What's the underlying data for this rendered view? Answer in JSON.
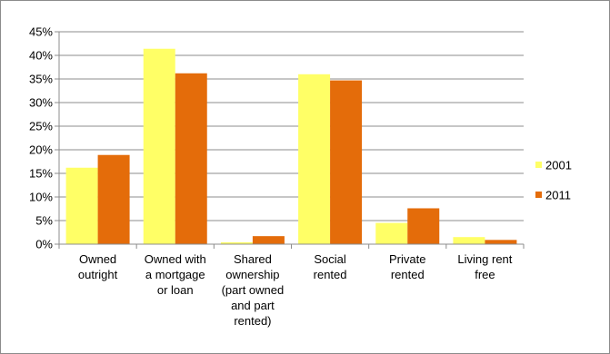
{
  "chart_data": {
    "type": "bar",
    "title": "",
    "xlabel": "",
    "ylabel": "",
    "ylim": [
      0,
      45
    ],
    "y_ticks": [
      "0%",
      "5%",
      "10%",
      "15%",
      "20%",
      "25%",
      "30%",
      "35%",
      "40%",
      "45%"
    ],
    "grid": true,
    "legend_position": "right",
    "categories": [
      [
        "Owned",
        "outright"
      ],
      [
        "Owned with",
        "a mortgage",
        "or loan"
      ],
      [
        "Shared",
        "ownership",
        "(part owned",
        "and part",
        "rented)"
      ],
      [
        "Social",
        "rented"
      ],
      [
        "Private",
        "rented"
      ],
      [
        "Living rent",
        "free"
      ]
    ],
    "series": [
      {
        "name": "2001",
        "color": "#ffff66",
        "values": [
          16.2,
          41.4,
          0.4,
          36.0,
          4.5,
          1.5
        ]
      },
      {
        "name": "2011",
        "color": "#e46c0a",
        "values": [
          18.9,
          36.2,
          1.7,
          34.7,
          7.6,
          0.9
        ]
      }
    ]
  }
}
